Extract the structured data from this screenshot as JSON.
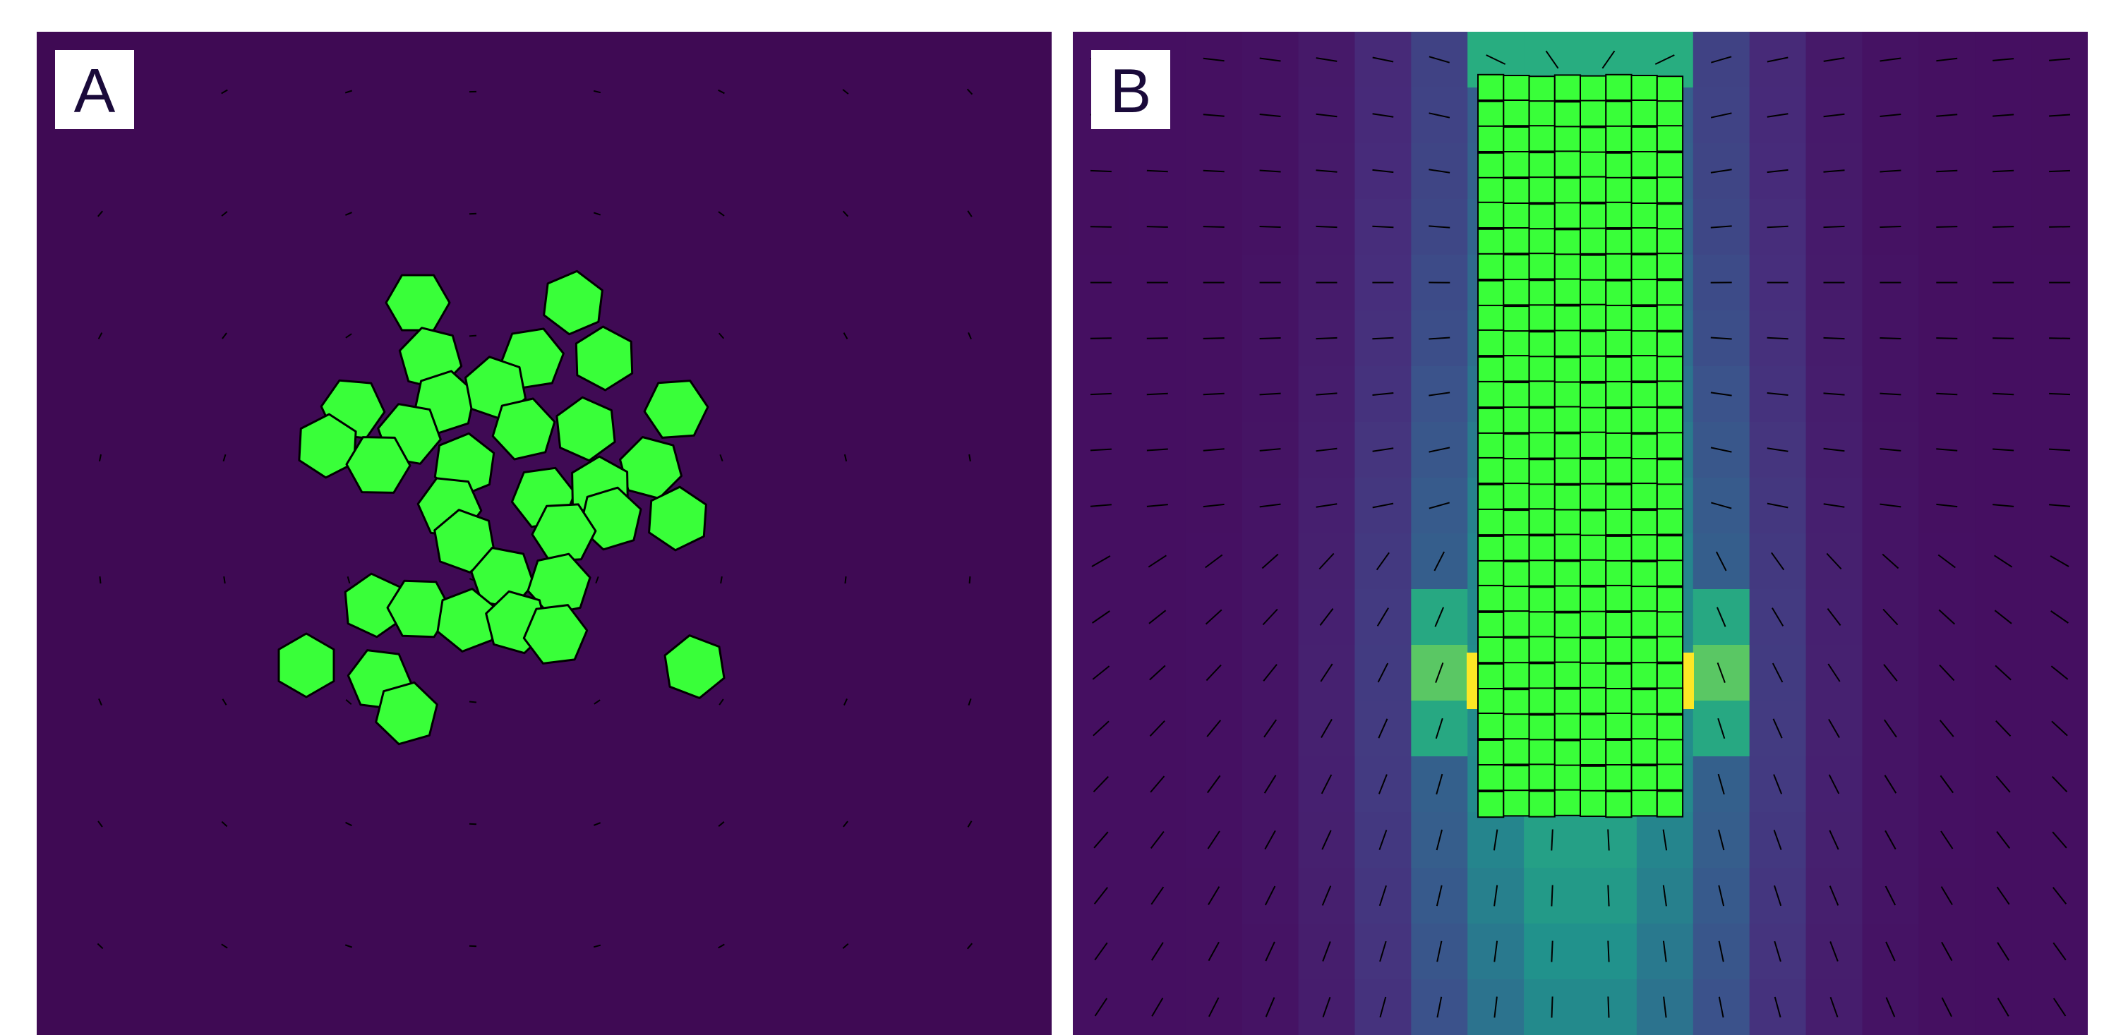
{
  "panels": [
    {
      "label": "A"
    },
    {
      "label": "B"
    }
  ],
  "colors": {
    "background": "#3f0a54",
    "cell_fill": "#39ff39",
    "cell_stroke": "#000000",
    "hot": "#fde725",
    "colormap": [
      "#440154",
      "#472d7b",
      "#3b528b",
      "#2c728e",
      "#21918c",
      "#28ae80",
      "#5ec962",
      "#addc30",
      "#fde725"
    ]
  },
  "cell_shape": {
    "a": "hexagon",
    "b": "square-grid"
  },
  "grid_columns_b": 8,
  "grid_rows_b": 29
}
